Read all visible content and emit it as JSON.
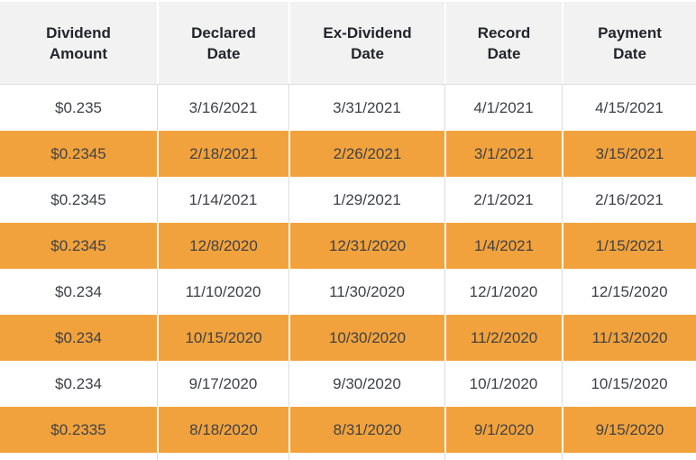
{
  "colors": {
    "highlight_row_orange": "#F2A23C",
    "header_background": "#F2F2F2",
    "header_text": "#23252B",
    "body_text": "#3F4146",
    "column_separator_gray": "#DCDCDC",
    "column_separator_white": "#FFFFFF"
  },
  "table": {
    "headers": [
      {
        "key": "dividend-amount",
        "label": "Dividend Amount",
        "lines": [
          "Dividend",
          "Amount"
        ]
      },
      {
        "key": "declared-date",
        "label": "Declared Date",
        "lines": [
          "Declared",
          "Date"
        ]
      },
      {
        "key": "ex-dividend-date",
        "label": "Ex-Dividend Date",
        "lines": [
          "Ex-Dividend",
          "Date"
        ]
      },
      {
        "key": "record-date",
        "label": "Record Date",
        "lines": [
          "Record",
          "Date"
        ]
      },
      {
        "key": "payment-date",
        "label": "Payment Date",
        "lines": [
          "Payment",
          "Date"
        ]
      }
    ],
    "rows": [
      {
        "highlighted": false,
        "cells": [
          "$0.235",
          "3/16/2021",
          "3/31/2021",
          "4/1/2021",
          "4/15/2021"
        ]
      },
      {
        "highlighted": true,
        "cells": [
          "$0.2345",
          "2/18/2021",
          "2/26/2021",
          "3/1/2021",
          "3/15/2021"
        ]
      },
      {
        "highlighted": false,
        "cells": [
          "$0.2345",
          "1/14/2021",
          "1/29/2021",
          "2/1/2021",
          "2/16/2021"
        ]
      },
      {
        "highlighted": true,
        "cells": [
          "$0.2345",
          "12/8/2020",
          "12/31/2020",
          "1/4/2021",
          "1/15/2021"
        ]
      },
      {
        "highlighted": false,
        "cells": [
          "$0.234",
          "11/10/2020",
          "11/30/2020",
          "12/1/2020",
          "12/15/2020"
        ]
      },
      {
        "highlighted": true,
        "cells": [
          "$0.234",
          "10/15/2020",
          "10/30/2020",
          "11/2/2020",
          "11/13/2020"
        ]
      },
      {
        "highlighted": false,
        "cells": [
          "$0.234",
          "9/17/2020",
          "9/30/2020",
          "10/1/2020",
          "10/15/2020"
        ]
      },
      {
        "highlighted": true,
        "cells": [
          "$0.2335",
          "8/18/2020",
          "8/31/2020",
          "9/1/2020",
          "9/15/2020"
        ]
      }
    ]
  },
  "chart_data": {
    "type": "table",
    "columns": [
      "Dividend Amount",
      "Declared Date",
      "Ex-Dividend Date",
      "Record Date",
      "Payment Date"
    ],
    "rows": [
      [
        "$0.235",
        "3/16/2021",
        "3/31/2021",
        "4/1/2021",
        "4/15/2021"
      ],
      [
        "$0.2345",
        "2/18/2021",
        "2/26/2021",
        "3/1/2021",
        "3/15/2021"
      ],
      [
        "$0.2345",
        "1/14/2021",
        "1/29/2021",
        "2/1/2021",
        "2/16/2021"
      ],
      [
        "$0.2345",
        "12/8/2020",
        "12/31/2020",
        "1/4/2021",
        "1/15/2021"
      ],
      [
        "$0.234",
        "11/10/2020",
        "11/30/2020",
        "12/1/2020",
        "12/15/2020"
      ],
      [
        "$0.234",
        "10/15/2020",
        "10/30/2020",
        "11/2/2020",
        "11/13/2020"
      ],
      [
        "$0.234",
        "9/17/2020",
        "9/30/2020",
        "10/1/2020",
        "10/15/2020"
      ],
      [
        "$0.2335",
        "8/18/2020",
        "8/31/2020",
        "9/1/2020",
        "9/15/2020"
      ]
    ],
    "highlighted_row_indices": [
      1,
      3,
      5,
      7
    ],
    "layout": "alternating white and orange rows, starting with white; header on light gray band"
  }
}
